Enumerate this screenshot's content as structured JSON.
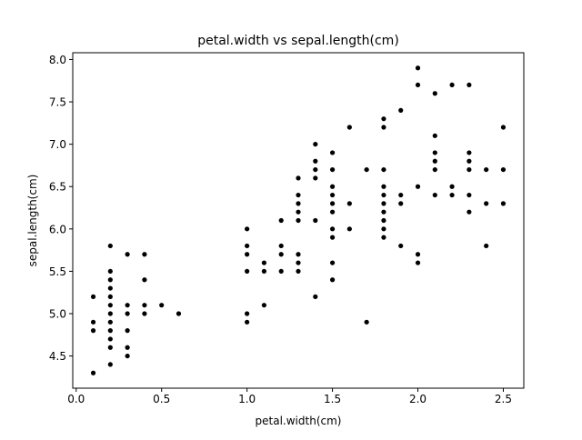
{
  "chart_data": {
    "type": "scatter",
    "title": "petal.width vs sepal.length(cm)",
    "xlabel": "petal.width(cm)",
    "ylabel": "sepal.length(cm)",
    "xlim": [
      -0.02,
      2.62
    ],
    "ylim": [
      4.12,
      8.08
    ],
    "xticks": [
      0.0,
      0.5,
      1.0,
      1.5,
      2.0,
      2.5
    ],
    "xtick_labels": [
      "0.0",
      "0.5",
      "1.0",
      "1.5",
      "2.0",
      "2.5"
    ],
    "yticks": [
      4.5,
      5.0,
      5.5,
      6.0,
      6.5,
      7.0,
      7.5,
      8.0
    ],
    "ytick_labels": [
      "4.5",
      "5.0",
      "5.5",
      "6.0",
      "6.5",
      "7.0",
      "7.5",
      "8.0"
    ],
    "grid": false,
    "marker_color": "#000000",
    "points": [
      [
        0.1,
        5.2
      ],
      [
        0.1,
        4.9
      ],
      [
        0.1,
        4.8
      ],
      [
        0.1,
        4.3
      ],
      [
        0.2,
        5.8
      ],
      [
        0.2,
        5.5
      ],
      [
        0.2,
        5.4
      ],
      [
        0.2,
        5.3
      ],
      [
        0.2,
        5.2
      ],
      [
        0.2,
        5.1
      ],
      [
        0.2,
        5.0
      ],
      [
        0.2,
        4.9
      ],
      [
        0.2,
        4.8
      ],
      [
        0.2,
        4.7
      ],
      [
        0.2,
        4.6
      ],
      [
        0.2,
        4.4
      ],
      [
        0.3,
        5.7
      ],
      [
        0.3,
        5.1
      ],
      [
        0.3,
        5.0
      ],
      [
        0.3,
        4.8
      ],
      [
        0.3,
        4.6
      ],
      [
        0.3,
        4.5
      ],
      [
        0.4,
        5.7
      ],
      [
        0.4,
        5.4
      ],
      [
        0.4,
        5.1
      ],
      [
        0.4,
        5.0
      ],
      [
        0.5,
        5.1
      ],
      [
        0.6,
        5.0
      ],
      [
        1.0,
        6.0
      ],
      [
        1.0,
        5.8
      ],
      [
        1.0,
        5.7
      ],
      [
        1.0,
        5.5
      ],
      [
        1.0,
        5.0
      ],
      [
        1.0,
        4.9
      ],
      [
        1.1,
        5.6
      ],
      [
        1.1,
        5.5
      ],
      [
        1.1,
        5.1
      ],
      [
        1.2,
        6.1
      ],
      [
        1.2,
        5.8
      ],
      [
        1.2,
        5.7
      ],
      [
        1.2,
        5.5
      ],
      [
        1.3,
        6.6
      ],
      [
        1.3,
        6.4
      ],
      [
        1.3,
        6.3
      ],
      [
        1.3,
        6.2
      ],
      [
        1.3,
        6.1
      ],
      [
        1.3,
        5.7
      ],
      [
        1.3,
        5.6
      ],
      [
        1.3,
        5.5
      ],
      [
        1.4,
        7.0
      ],
      [
        1.4,
        6.8
      ],
      [
        1.4,
        6.7
      ],
      [
        1.4,
        6.6
      ],
      [
        1.4,
        6.1
      ],
      [
        1.4,
        5.2
      ],
      [
        1.5,
        6.9
      ],
      [
        1.5,
        6.7
      ],
      [
        1.5,
        6.5
      ],
      [
        1.5,
        6.4
      ],
      [
        1.5,
        6.3
      ],
      [
        1.5,
        6.2
      ],
      [
        1.5,
        6.0
      ],
      [
        1.5,
        5.9
      ],
      [
        1.5,
        5.6
      ],
      [
        1.5,
        5.4
      ],
      [
        1.6,
        7.2
      ],
      [
        1.6,
        6.3
      ],
      [
        1.6,
        6.0
      ],
      [
        1.7,
        6.7
      ],
      [
        1.7,
        4.9
      ],
      [
        1.8,
        7.3
      ],
      [
        1.8,
        7.2
      ],
      [
        1.8,
        6.7
      ],
      [
        1.8,
        6.5
      ],
      [
        1.8,
        6.4
      ],
      [
        1.8,
        6.3
      ],
      [
        1.8,
        6.2
      ],
      [
        1.8,
        6.1
      ],
      [
        1.8,
        6.0
      ],
      [
        1.8,
        5.9
      ],
      [
        1.9,
        7.4
      ],
      [
        1.9,
        6.4
      ],
      [
        1.9,
        6.3
      ],
      [
        1.9,
        5.8
      ],
      [
        2.0,
        7.9
      ],
      [
        2.0,
        7.7
      ],
      [
        2.0,
        6.5
      ],
      [
        2.0,
        5.7
      ],
      [
        2.0,
        5.6
      ],
      [
        2.1,
        7.6
      ],
      [
        2.1,
        7.1
      ],
      [
        2.1,
        6.9
      ],
      [
        2.1,
        6.8
      ],
      [
        2.1,
        6.7
      ],
      [
        2.1,
        6.4
      ],
      [
        2.2,
        7.7
      ],
      [
        2.2,
        6.5
      ],
      [
        2.2,
        6.4
      ],
      [
        2.3,
        7.7
      ],
      [
        2.3,
        6.9
      ],
      [
        2.3,
        6.8
      ],
      [
        2.3,
        6.7
      ],
      [
        2.3,
        6.4
      ],
      [
        2.3,
        6.2
      ],
      [
        2.4,
        6.7
      ],
      [
        2.4,
        6.3
      ],
      [
        2.4,
        5.8
      ],
      [
        2.5,
        7.2
      ],
      [
        2.5,
        6.7
      ],
      [
        2.5,
        6.3
      ]
    ]
  }
}
